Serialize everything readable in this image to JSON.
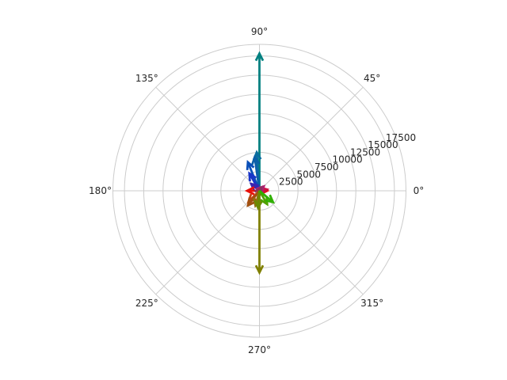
{
  "chart_data": {
    "type": "polar-quiver",
    "title": "",
    "r_ticks": [
      "2500",
      "5000",
      "7500",
      "10000",
      "12500",
      "15000",
      "17500"
    ],
    "r_tick_values": [
      2500,
      5000,
      7500,
      10000,
      12500,
      15000,
      17500
    ],
    "r_max": 19000,
    "r_label_angle_deg": 22.5,
    "theta_ticks": [
      "0°",
      "45°",
      "90°",
      "135°",
      "180°",
      "225°",
      "270°",
      "315°"
    ],
    "theta_tick_values": [
      0,
      45,
      90,
      135,
      180,
      225,
      270,
      315
    ],
    "grid": true,
    "grid_color": "#cccccc",
    "arrows": [
      {
        "angle": 90,
        "magnitude": 17800,
        "color": "#008080"
      },
      {
        "angle": 270,
        "magnitude": 10600,
        "color": "#808000"
      },
      {
        "angle": 94,
        "magnitude": 5000,
        "color": "#0a6e9e"
      },
      {
        "angle": 98,
        "magnitude": 4400,
        "color": "#0c5fa8"
      },
      {
        "angle": 112,
        "magnitude": 4000,
        "color": "#0a4fb8"
      },
      {
        "angle": 120,
        "magnitude": 2600,
        "color": "#1a35c8"
      },
      {
        "angle": 140,
        "magnitude": 1400,
        "color": "#3a25b0"
      },
      {
        "angle": 180,
        "magnitude": 1600,
        "color": "#e8100a"
      },
      {
        "angle": 0,
        "magnitude": 1000,
        "color": "#e8100a"
      },
      {
        "angle": 10,
        "magnitude": 1000,
        "color": "#d01040"
      },
      {
        "angle": 45,
        "magnitude": 800,
        "color": "#b02070"
      },
      {
        "angle": 60,
        "magnitude": 500,
        "color": "#8a3060"
      },
      {
        "angle": 225,
        "magnitude": 2000,
        "color": "#c04010"
      },
      {
        "angle": 232,
        "magnitude": 2400,
        "color": "#a05010"
      },
      {
        "angle": 255,
        "magnitude": 2000,
        "color": "#907010"
      },
      {
        "angle": 265,
        "magnitude": 2200,
        "color": "#6a8a00"
      },
      {
        "angle": 300,
        "magnitude": 2000,
        "color": "#50a000"
      },
      {
        "angle": 320,
        "magnitude": 2300,
        "color": "#30b000"
      }
    ]
  }
}
